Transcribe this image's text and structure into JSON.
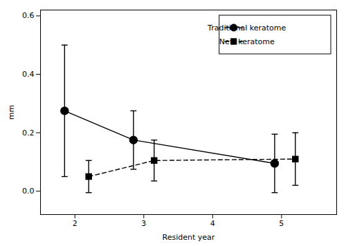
{
  "chart_data": {
    "type": "line",
    "xlabel": "Resident year",
    "ylabel": "mm",
    "xlim": [
      1.5,
      5.8
    ],
    "ylim": [
      -0.08,
      0.62
    ],
    "xticks": [
      2,
      3,
      4,
      5
    ],
    "yticks": [
      {
        "value": 0.0,
        "label": "0.0"
      },
      0.2,
      0.4,
      0.6
    ],
    "legend": "upper right",
    "series": [
      {
        "name": "Traditional keratome",
        "color": "#000000",
        "marker": "circle",
        "line_style": "solid",
        "x": [
          1.85,
          2.85,
          4.9
        ],
        "values": [
          0.275,
          0.175,
          0.095
        ],
        "yerr": [
          0.225,
          0.1,
          0.1
        ]
      },
      {
        "name": "New keratome",
        "color": "#000000",
        "marker": "square",
        "line_style": "dashed",
        "x": [
          2.2,
          3.15,
          5.2
        ],
        "values": [
          0.05,
          0.105,
          0.11
        ],
        "yerr": [
          0.055,
          0.07,
          0.09
        ]
      }
    ]
  }
}
